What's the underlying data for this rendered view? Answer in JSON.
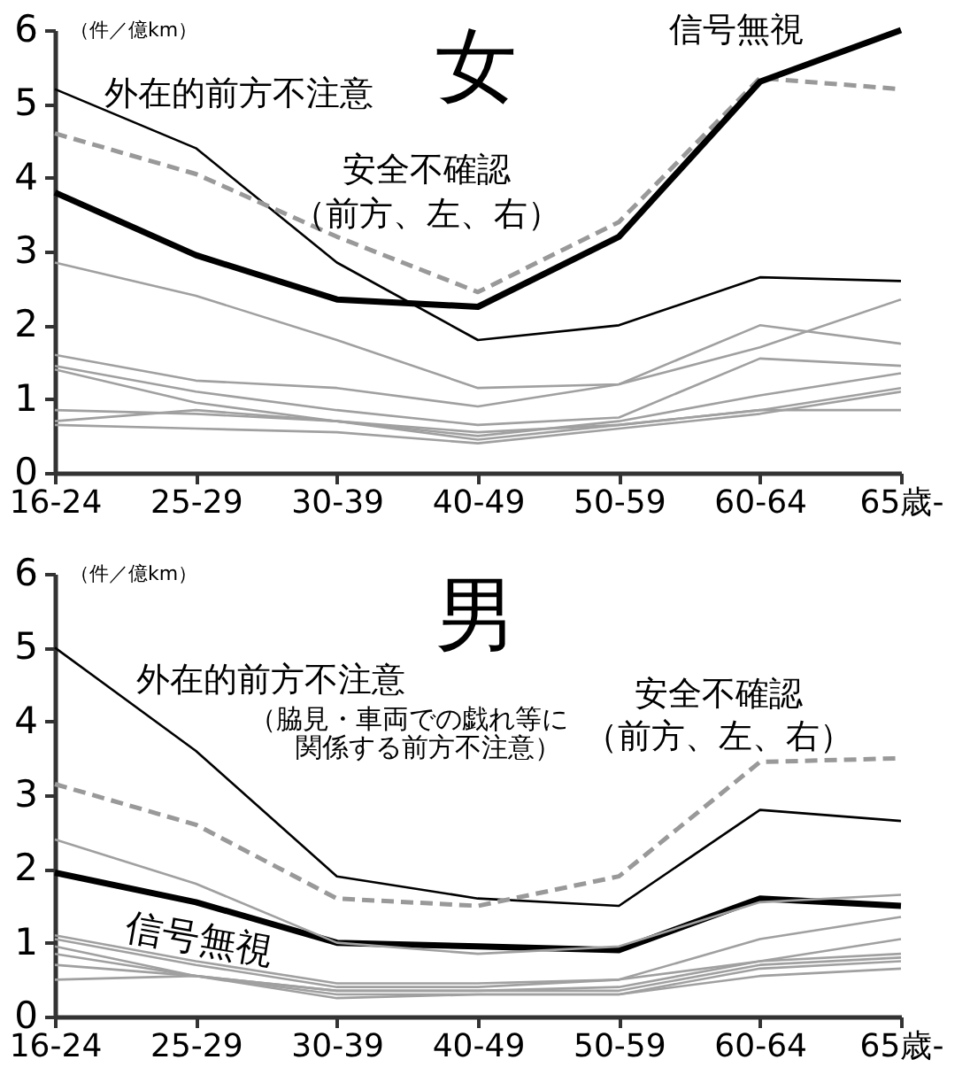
{
  "chart_data": [
    {
      "type": "line",
      "title": "女",
      "ylabel": "（件／億km）",
      "categories": [
        "16-24",
        "25-29",
        "30-39",
        "40-49",
        "50-59",
        "60-64",
        "65歳-"
      ],
      "ylim": [
        0,
        6
      ],
      "yticks": [
        0,
        1,
        2,
        3,
        4,
        5,
        6
      ],
      "grid": false,
      "marker": "none",
      "annotations": [
        "（前方、左、右）"
      ],
      "series": [
        {
          "name": "外在的前方不注意",
          "color": "#000000",
          "line_style": "solid",
          "values": [
            5.2,
            4.4,
            2.85,
            1.8,
            2.0,
            2.65,
            2.6
          ]
        },
        {
          "name": "安全不確認",
          "color": "#999999",
          "line_style": "dashed",
          "values": [
            4.6,
            4.05,
            3.2,
            2.45,
            3.4,
            5.35,
            5.2
          ]
        },
        {
          "name": "信号無視",
          "color": "#000000",
          "line_style": "solid",
          "values": [
            3.8,
            2.95,
            2.35,
            2.25,
            3.2,
            5.3,
            6.0
          ]
        },
        {
          "color": "#a0a0a0",
          "line_style": "solid",
          "values": [
            2.85,
            2.4,
            1.8,
            1.15,
            1.2,
            1.7,
            2.35
          ]
        },
        {
          "color": "#a0a0a0",
          "line_style": "solid",
          "values": [
            1.6,
            1.25,
            1.15,
            0.9,
            1.2,
            2.0,
            1.75
          ]
        },
        {
          "color": "#a0a0a0",
          "line_style": "solid",
          "values": [
            1.45,
            1.1,
            0.85,
            0.65,
            0.75,
            1.55,
            1.45
          ]
        },
        {
          "color": "#a0a0a0",
          "line_style": "solid",
          "values": [
            1.4,
            0.95,
            0.7,
            0.5,
            0.7,
            1.05,
            1.35
          ]
        },
        {
          "color": "#a0a0a0",
          "line_style": "solid",
          "values": [
            0.85,
            0.8,
            0.7,
            0.55,
            0.65,
            0.85,
            1.15
          ]
        },
        {
          "color": "#a0a0a0",
          "line_style": "solid",
          "values": [
            0.7,
            0.85,
            0.7,
            0.45,
            0.65,
            0.85,
            0.85
          ]
        },
        {
          "color": "#a0a0a0",
          "line_style": "solid",
          "values": [
            0.65,
            0.6,
            0.55,
            0.4,
            0.6,
            0.8,
            1.1
          ]
        }
      ]
    },
    {
      "type": "line",
      "title": "男",
      "ylabel": "（件／億km）",
      "categories": [
        "16-24",
        "25-29",
        "30-39",
        "40-49",
        "50-59",
        "60-64",
        "65歳-"
      ],
      "ylim": [
        0,
        6
      ],
      "yticks": [
        0,
        1,
        2,
        3,
        4,
        5,
        6
      ],
      "grid": false,
      "marker": "none",
      "annotations": [
        "（脇見・車両での戯れ等に",
        "関係する前方不注意）",
        "（前方、左、右）"
      ],
      "series": [
        {
          "name": "外在的前方不注意",
          "color": "#000000",
          "line_style": "solid",
          "values": [
            5.0,
            3.6,
            1.9,
            1.6,
            1.5,
            2.8,
            2.65
          ]
        },
        {
          "name": "安全不確認",
          "color": "#999999",
          "line_style": "dashed",
          "values": [
            3.15,
            2.6,
            1.6,
            1.5,
            1.9,
            3.45,
            3.5
          ]
        },
        {
          "name": "信号無視",
          "color": "#000000",
          "line_style": "solid",
          "values": [
            1.95,
            1.55,
            1.0,
            0.95,
            0.9,
            1.6,
            1.5
          ]
        },
        {
          "color": "#a0a0a0",
          "line_style": "solid",
          "values": [
            2.4,
            1.8,
            1.0,
            0.85,
            0.95,
            1.55,
            1.65
          ]
        },
        {
          "color": "#a0a0a0",
          "line_style": "solid",
          "values": [
            1.1,
            0.75,
            0.45,
            0.45,
            0.5,
            1.05,
            1.35
          ]
        },
        {
          "color": "#a0a0a0",
          "line_style": "solid",
          "values": [
            1.05,
            0.7,
            0.4,
            0.4,
            0.5,
            0.75,
            1.05
          ]
        },
        {
          "color": "#a0a0a0",
          "line_style": "solid",
          "values": [
            0.95,
            0.55,
            0.35,
            0.35,
            0.4,
            0.75,
            0.85
          ]
        },
        {
          "color": "#a0a0a0",
          "line_style": "solid",
          "values": [
            0.85,
            0.55,
            0.35,
            0.35,
            0.35,
            0.7,
            0.8
          ]
        },
        {
          "color": "#a0a0a0",
          "line_style": "solid",
          "values": [
            0.7,
            0.55,
            0.3,
            0.3,
            0.3,
            0.65,
            0.75
          ]
        },
        {
          "color": "#a0a0a0",
          "line_style": "solid",
          "values": [
            0.5,
            0.55,
            0.25,
            0.3,
            0.3,
            0.55,
            0.65
          ]
        }
      ]
    }
  ]
}
